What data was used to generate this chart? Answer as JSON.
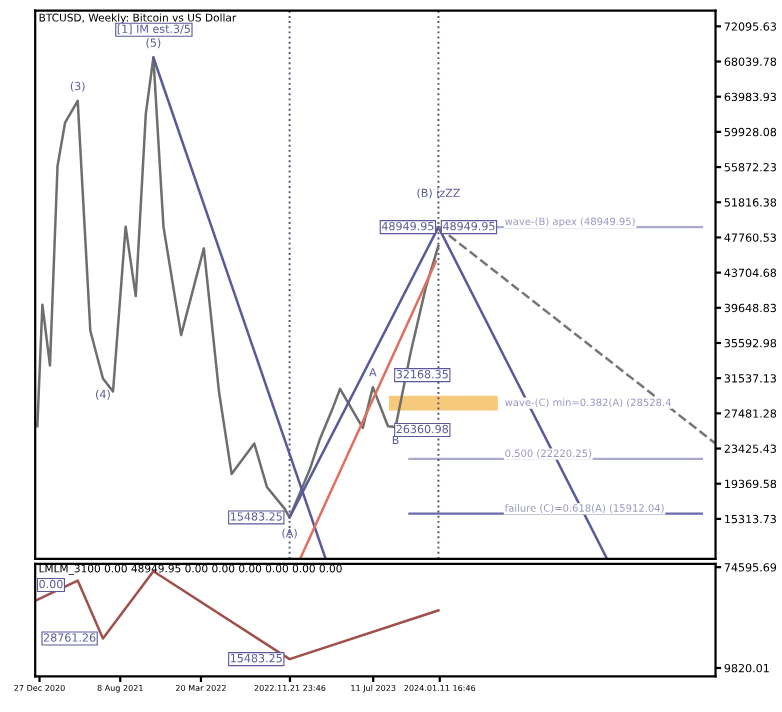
{
  "chart_data": [
    {
      "type": "line",
      "title": "BTCUSD, Weekly: Bitcoin vs US Dollar",
      "tick_labels": "y",
      "grid": false,
      "legend": false,
      "xlim": [
        "2020-12-15",
        "2026-02-15"
      ],
      "ylim": [
        10700,
        73900
      ],
      "yticks": [
        72095.63,
        68039.78,
        63983.93,
        59928.08,
        55872.23,
        51816.38,
        47760.53,
        43704.68,
        39648.83,
        35592.98,
        31537.13,
        27481.28,
        23425.43,
        19369.58,
        15313.73
      ],
      "x": [
        "2020-12-21",
        "2021-01-04",
        "2021-01-25",
        "2021-02-15",
        "2021-03-08",
        "2021-04-12",
        "2021-05-17",
        "2021-06-21",
        "2021-07-19",
        "2021-08-23",
        "2021-09-20",
        "2021-10-18",
        "2021-11-08",
        "2021-12-06",
        "2022-01-24",
        "2022-03-28",
        "2022-05-09",
        "2022-06-13",
        "2022-08-15",
        "2022-09-19",
        "2022-11-07",
        "2022-11-21",
        "2023-01-16",
        "2023-02-13",
        "2023-03-20",
        "2023-04-10",
        "2023-06-12",
        "2023-07-10",
        "2023-08-21",
        "2023-09-11",
        "2023-10-23",
        "2023-12-04",
        "2024-01-08"
      ],
      "series": [
        {
          "color": "#6e6e6e",
          "values": [
            26000,
            40000,
            33000,
            56000,
            61000,
            63500,
            37000,
            31500,
            30000,
            49000,
            41000,
            62000,
            68500,
            49000,
            36500,
            46500,
            30000,
            20500,
            24000,
            19000,
            16500,
            15483.25,
            21000,
            24500,
            28000,
            30300,
            25800,
            30500,
            26000,
            25900,
            34500,
            42000,
            46800
          ]
        },
        {
          "color": "#5a5a9a",
          "x": [
            "2021-11-08",
            "2023-03-01"
          ],
          "values": [
            68500,
            10700
          ]
        },
        {
          "color": "#5a5a9a",
          "x": [
            "2022-11-21",
            "2024-01-08",
            "2025-04-20"
          ],
          "values": [
            15483.25,
            48949.95,
            10700
          ]
        },
        {
          "color": "#e07060",
          "x": [
            "2022-12-20",
            "2024-01-01"
          ],
          "values": [
            10700,
            45000
          ]
        },
        {
          "color": "#777777",
          "line_style": "dashed",
          "x": [
            "2024-01-08",
            "2026-02-15"
          ],
          "values": [
            48949.95,
            24000
          ]
        }
      ],
      "ref_lines": [
        {
          "axis": "y",
          "value": 48949.95,
          "label": "wave-(B) apex (48949.95)",
          "color": "#aaaacc"
        },
        {
          "axis": "y",
          "value": 22220.25,
          "label": "0.500 (22220.25)",
          "color": "#aaaacc"
        },
        {
          "axis": "y",
          "value": 15912.04,
          "label": "failure (C)=0.618(A) (15912.04)",
          "color": "#6a6ab0"
        },
        {
          "axis": "x",
          "value": "2022-11-21",
          "color": "#555577",
          "line_style": "dotted"
        },
        {
          "axis": "x",
          "value": "2024-01-08",
          "color": "#555577",
          "line_style": "dotted"
        }
      ],
      "bands": [
        {
          "axis": "y",
          "from": 27800,
          "to": 29500,
          "label": "wave-(C) min=0.382(A) (28528.4",
          "color": "#f7c97a"
        }
      ],
      "annotations": [
        "[1] IM est.3/5",
        {
          "text": "(3)",
          "x": "2021-04-12",
          "y": 63500
        },
        {
          "text": "(5)",
          "x": "2021-11-08",
          "y": 68500
        },
        {
          "text": "(4)",
          "x": "2021-06-21",
          "y": 31500
        },
        {
          "text": "(B) izZZ",
          "x": "2024-01-08",
          "y": 48949.95
        },
        {
          "text": "48949.95",
          "x": "2024-01-08",
          "y": 48949.95
        },
        {
          "text": "48949.95",
          "x": "2024-01-08",
          "y": 48949.95
        },
        {
          "text": "A",
          "x": "2023-07-10",
          "y": 30500
        },
        {
          "text": "B",
          "x": "2023-09-11",
          "y": 25900
        },
        {
          "text": "(A)",
          "x": "2022-11-21",
          "y": 15483.25
        },
        {
          "text": "15483.25",
          "x": "2022-11-21",
          "y": 15483.25
        },
        "32168.35",
        "26360.98"
      ]
    },
    {
      "type": "line",
      "title": "LMLM_3100 0.00 48949.95 0.00 0.00 0.00 0.00 0.00 0.00",
      "grid": false,
      "legend": false,
      "xlim": [
        "2020-12-15",
        "2026-02-15"
      ],
      "ylim": [
        4400,
        76700
      ],
      "yticks": [
        74595.69,
        9820.01
      ],
      "xticks": [
        {
          "value": "2020-12-27",
          "label": "27 Dec 2020"
        },
        {
          "value": "2021-08-08",
          "label": "8 Aug 2021"
        },
        {
          "value": "2022-03-20",
          "label": "20 Mar 2022"
        },
        {
          "value": "2022-11-21T23:46",
          "label": "2022.11.21 23:46"
        },
        {
          "value": "2023-07-11",
          "label": "11 Jul 2023"
        },
        {
          "value": "2024-01-11T16:46",
          "label": "2024.01.11 16:46"
        }
      ],
      "x": [
        "2020-12-15",
        "2021-04-12",
        "2021-06-21",
        "2021-11-08",
        "2022-11-21",
        "2024-01-08"
      ],
      "series": [
        {
          "color": "#a0504a",
          "values": [
            53000,
            66000,
            28761.26,
            72000,
            15483.25,
            46800
          ]
        }
      ],
      "annotations": [
        "0.00",
        {
          "text": "28761.26",
          "x": "2021-06-21",
          "y": 28761.26
        },
        {
          "text": "15483.25",
          "x": "2022-11-21",
          "y": 15483.25
        }
      ]
    }
  ]
}
